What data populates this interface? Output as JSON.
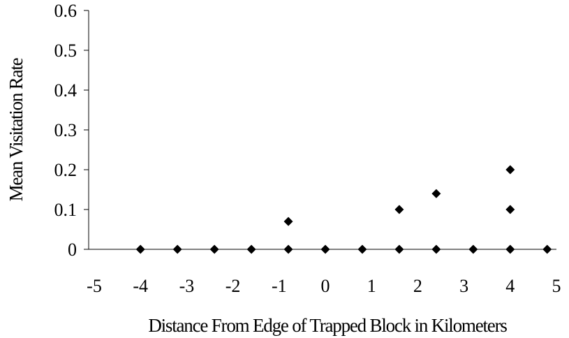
{
  "chart_data": {
    "type": "scatter",
    "title": "",
    "xlabel": "Distance From Edge of Trapped Block in Kilometers",
    "ylabel": "Mean Visitation Rate",
    "xlim": [
      -5,
      5
    ],
    "ylim": [
      0,
      0.6
    ],
    "x_ticks": [
      "-5",
      "-4",
      "-3",
      "-2",
      "-1",
      "0",
      "1",
      "2",
      "3",
      "4",
      "5"
    ],
    "y_ticks": [
      "0",
      "0.1",
      "0.2",
      "0.3",
      "0.4",
      "0.5",
      "0.6"
    ],
    "grid": false,
    "legend": "none",
    "marker": "diamond",
    "marker_color": "#000000",
    "points": [
      {
        "x": -4.0,
        "y": 0
      },
      {
        "x": -3.2,
        "y": 0
      },
      {
        "x": -2.4,
        "y": 0
      },
      {
        "x": -1.6,
        "y": 0
      },
      {
        "x": -0.8,
        "y": 0
      },
      {
        "x": -0.8,
        "y": 0.07
      },
      {
        "x": 0.0,
        "y": 0
      },
      {
        "x": 0.8,
        "y": 0
      },
      {
        "x": 1.6,
        "y": 0
      },
      {
        "x": 1.6,
        "y": 0.1
      },
      {
        "x": 2.4,
        "y": 0
      },
      {
        "x": 2.4,
        "y": 0.14
      },
      {
        "x": 3.2,
        "y": 0
      },
      {
        "x": 4.0,
        "y": 0
      },
      {
        "x": 4.0,
        "y": 0.1
      },
      {
        "x": 4.0,
        "y": 0.2
      },
      {
        "x": 4.8,
        "y": 0
      }
    ]
  }
}
